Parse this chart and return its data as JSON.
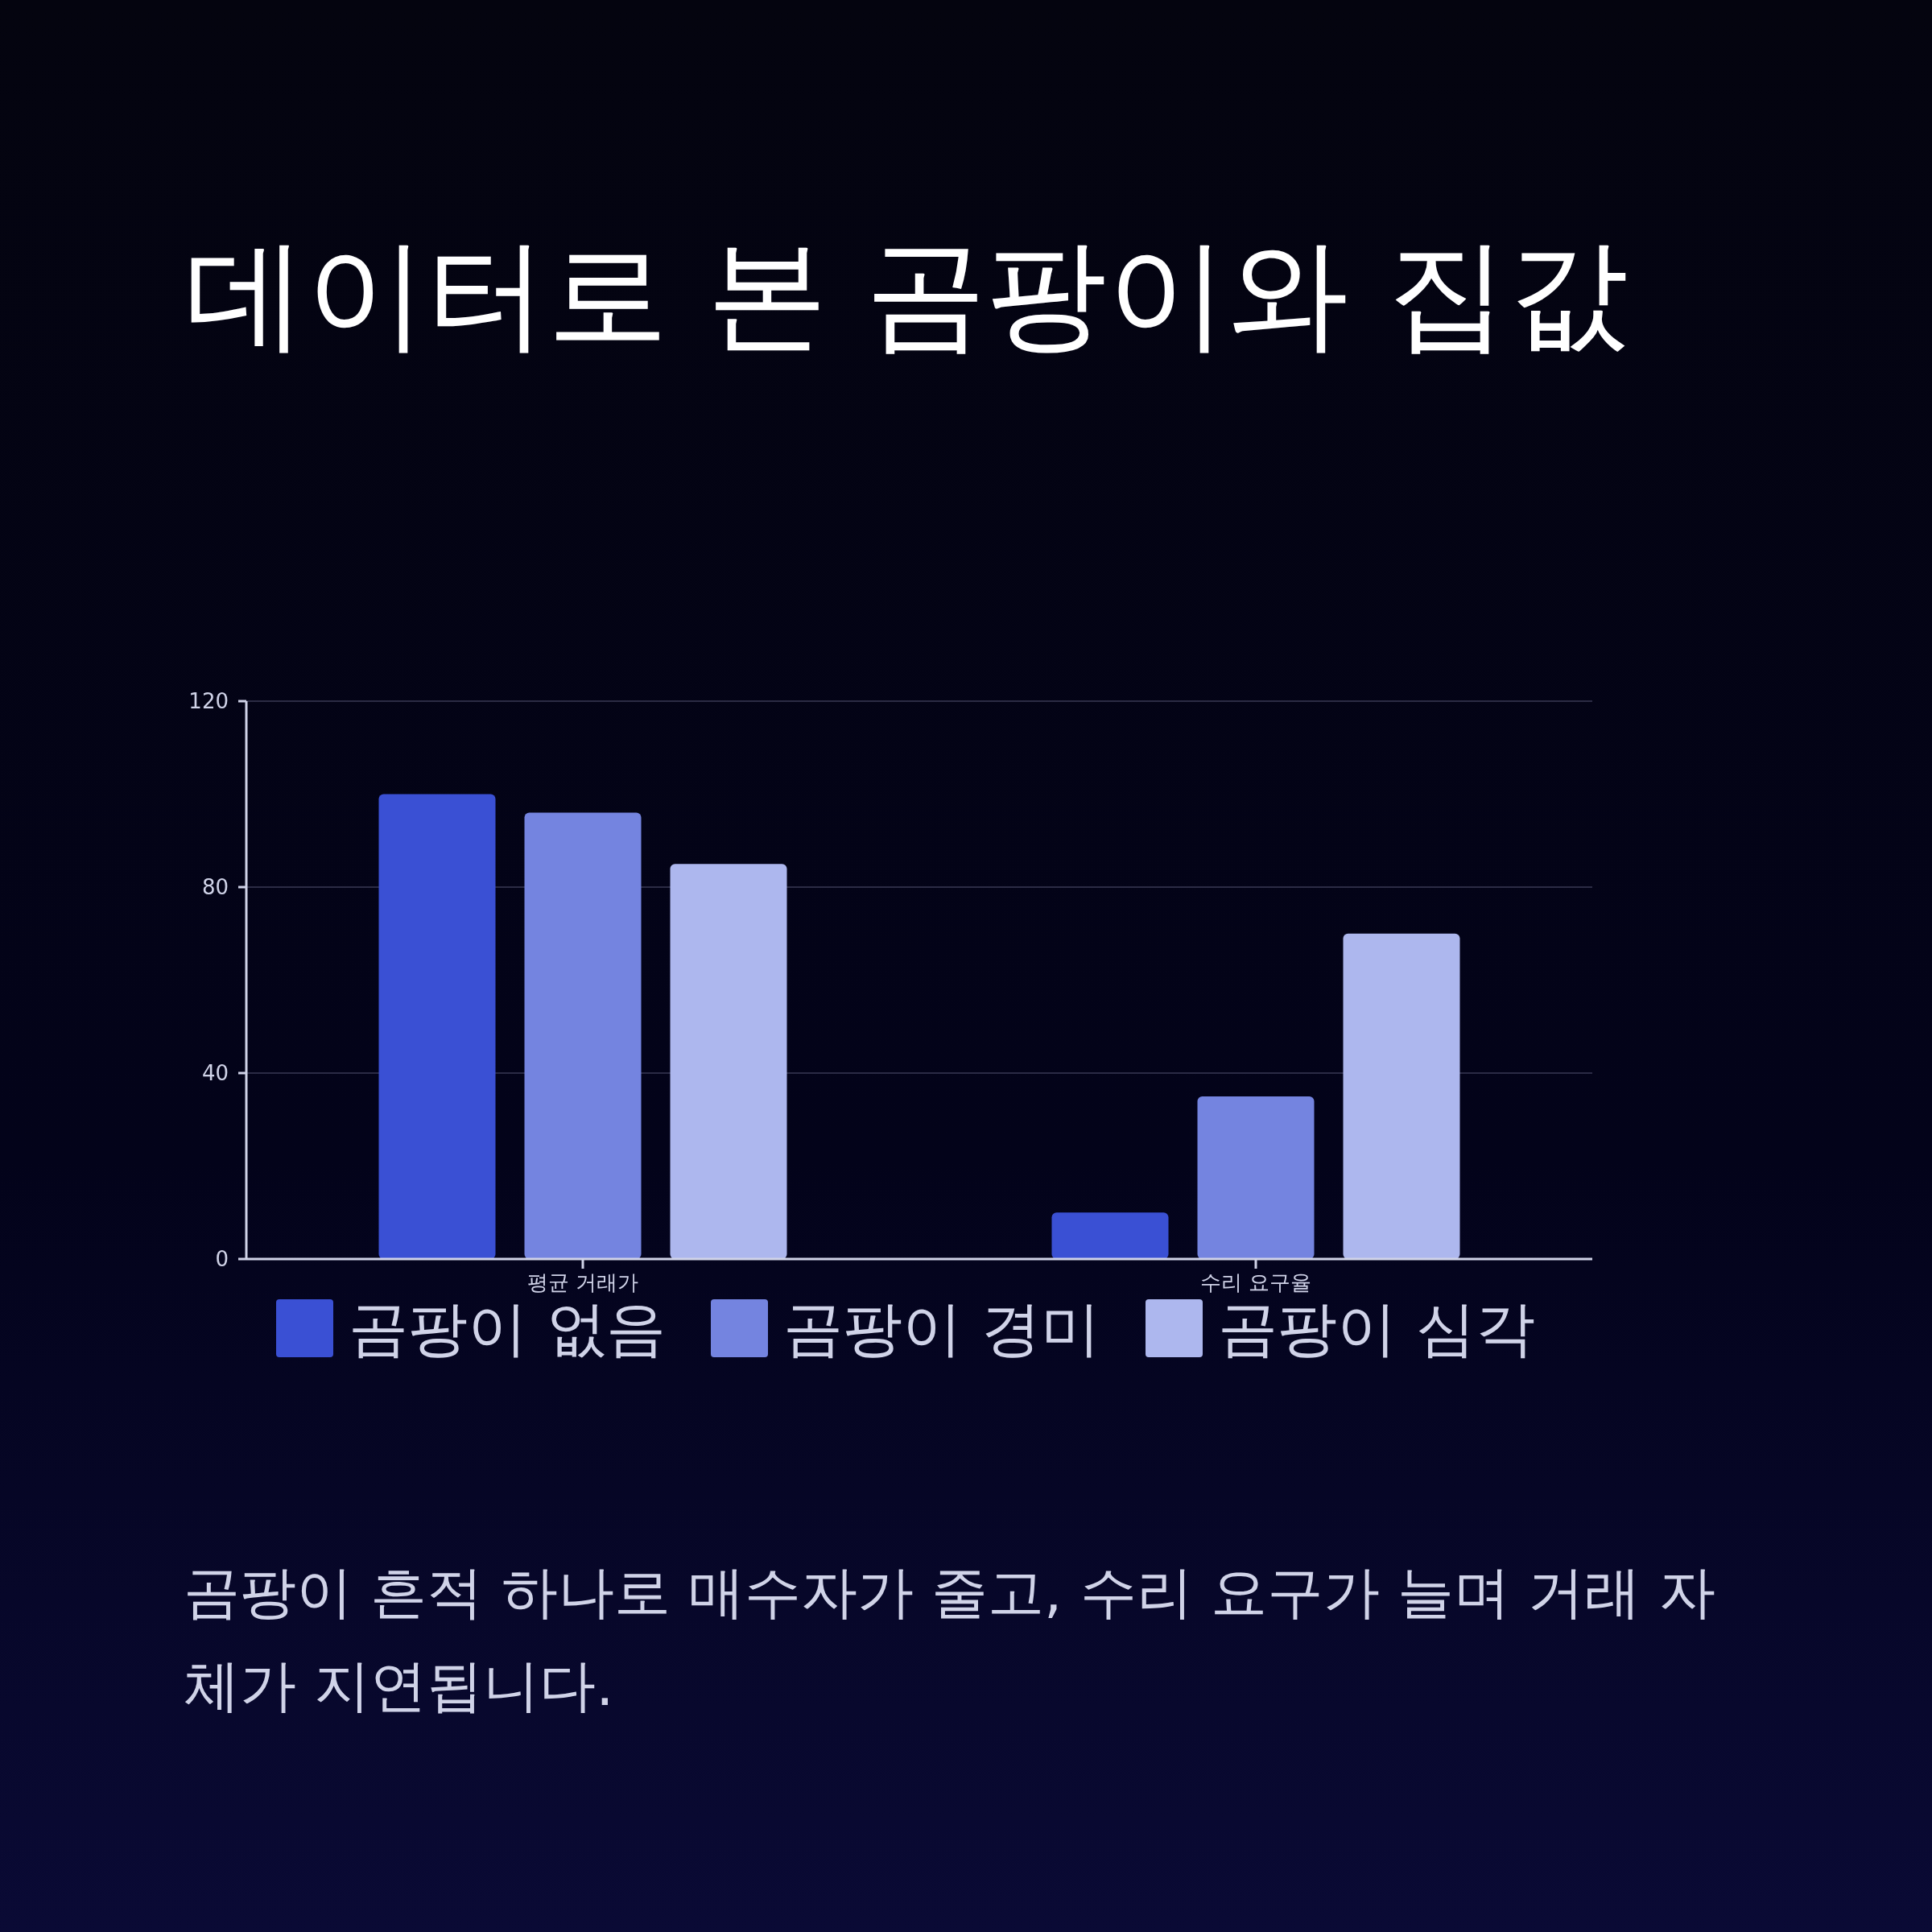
{
  "chart_data": {
    "type": "bar",
    "title": "데이터로 본 곰팡이와 집값",
    "categories": [
      "평균 거래가",
      "수리 요구율"
    ],
    "series": [
      {
        "name": "곰팡이 없음",
        "color": "#3a50d4",
        "values": [
          100,
          10
        ]
      },
      {
        "name": "곰팡이 경미",
        "color": "#7484e0",
        "values": [
          96,
          35
        ]
      },
      {
        "name": "곰팡이 심각",
        "color": "#adb7ee",
        "values": [
          85,
          70
        ]
      }
    ],
    "ylim": [
      0,
      120
    ],
    "yticks": [
      0,
      40,
      80,
      120
    ],
    "grid": "y",
    "legend": "bottom",
    "annotations": [
      "곰팡이 흔적 하나로 매수자가 줄고, 수리 요구가 늘며 거래 자체가 지연됩니다."
    ]
  }
}
